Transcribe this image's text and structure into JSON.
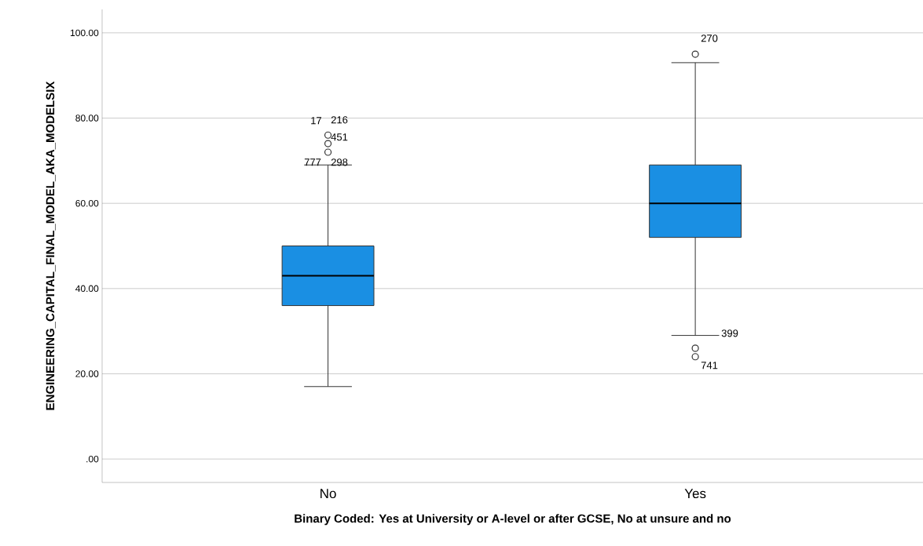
{
  "chart_data": {
    "type": "box",
    "xlabel": "Binary Coded: Yes at University or A-level or after GCSE, No at unsure and no",
    "ylabel": "ENGINEERING_CAPITAL_FINAL_MODEL_AKA_MODELSIX",
    "categories": [
      "No",
      "Yes"
    ],
    "color": "#1a8fe3",
    "boxes": [
      {
        "low": 17,
        "q1": 36,
        "median": 43,
        "q3": 50,
        "high": 69,
        "outliers": [
          76,
          74,
          72
        ]
      },
      {
        "low": 29,
        "q1": 52,
        "median": 60,
        "q3": 69,
        "high": 93,
        "outliers": [
          95,
          26,
          24
        ]
      }
    ],
    "ylim": [
      -5.5,
      105.5
    ],
    "yticks": [
      {
        "value": 0,
        "label": ".00"
      },
      {
        "value": 20,
        "label": "20.00"
      },
      {
        "value": 40,
        "label": "40.00"
      },
      {
        "value": 60,
        "label": "60.00"
      },
      {
        "value": 80,
        "label": "80.00"
      },
      {
        "value": 100,
        "label": "100.00"
      }
    ],
    "grid": "y",
    "annotations": [
      "17",
      "216",
      "451",
      "777",
      "298",
      "270",
      "399",
      "741"
    ]
  }
}
